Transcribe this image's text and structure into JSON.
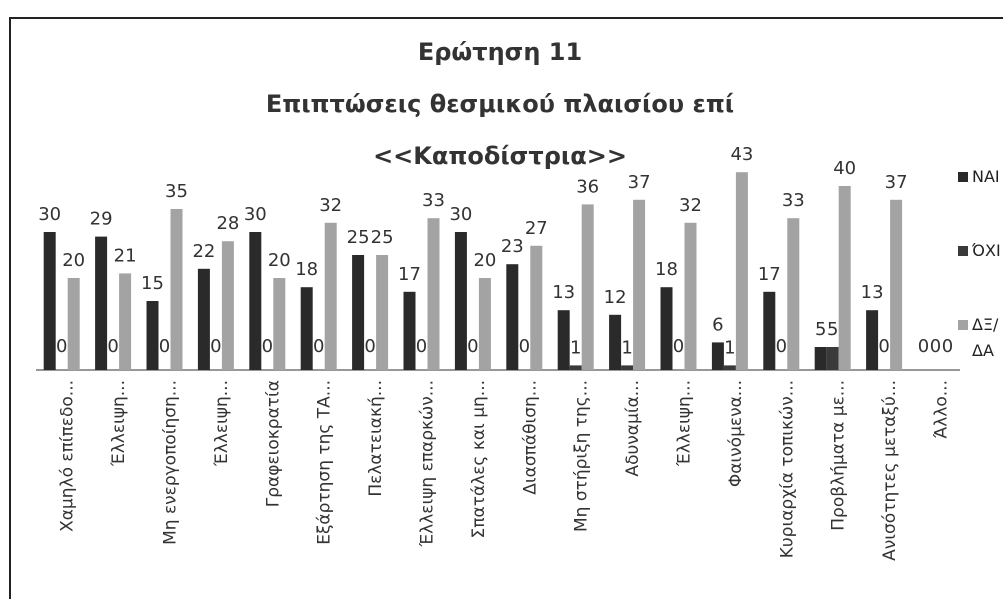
{
  "chart_data": {
    "type": "bar",
    "title": [
      "Ερώτηση 11",
      "Επιπτώσεις θεσμικού πλαισίου επί",
      "<<Καποδίστρια>>"
    ],
    "categories": [
      "Χαμηλό επίπεδο...",
      "Έλλειψη...",
      "Μη ενεργοποίηση...",
      "Έλλειψη...",
      "Γραφειοκρατία",
      "Εξάρτηση της ΤΑ...",
      "Πελατειακή...",
      "Έλλειψη επαρκών...",
      "Σπατάλες και μη...",
      "Διασπάθιση...",
      "Μη στήριξη της...",
      "Αδυναμία...",
      "Έλλειψη...",
      "Φαινόμενα...",
      "Κυριαρχία τοπικών...",
      "Προβλήματα με...",
      "Ανισότητες μεταξύ...",
      "Άλλο..."
    ],
    "series": [
      {
        "name": "ΝΑΙ",
        "color": "#2a2a2a",
        "values": [
          30,
          29,
          15,
          22,
          30,
          18,
          25,
          17,
          30,
          23,
          13,
          12,
          18,
          6,
          17,
          5,
          13,
          0
        ]
      },
      {
        "name": "ΌΧΙ",
        "color": "#3a3a3a",
        "values": [
          0,
          0,
          0,
          0,
          0,
          0,
          0,
          0,
          0,
          0,
          1,
          1,
          0,
          1,
          0,
          5,
          0,
          0
        ]
      },
      {
        "name": "ΔΞ/ΔΑ",
        "color": "#a3a3a3",
        "values": [
          20,
          21,
          35,
          28,
          20,
          32,
          25,
          33,
          20,
          27,
          36,
          37,
          32,
          43,
          33,
          40,
          37,
          0
        ]
      }
    ],
    "ylim": [
      0,
      45
    ],
    "legend": "right"
  }
}
